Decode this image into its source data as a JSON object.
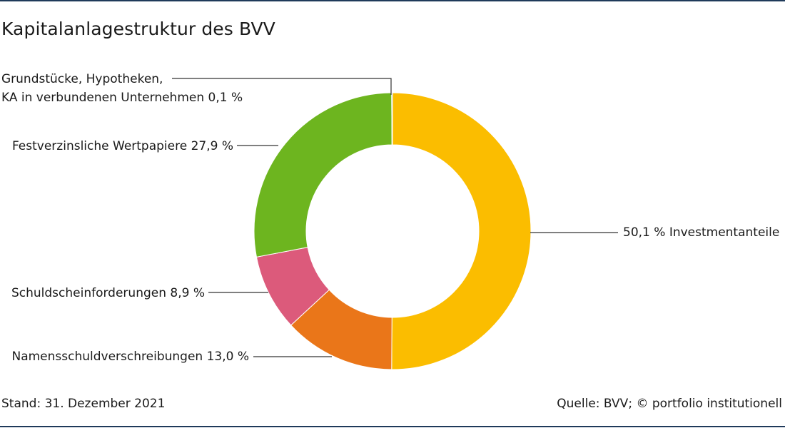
{
  "title": "Kapitalanlagestruktur des BVV",
  "footer": {
    "stand": "Stand: 31. Dezember 2021",
    "source": "Quelle: BVV; © portfolio institutionell"
  },
  "chart_data": {
    "type": "pie",
    "variant": "donut",
    "title": "Kapitalanlagestruktur des BVV",
    "unit": "%",
    "slices": [
      {
        "label": "Investmentanteile",
        "value": 50.1,
        "color": "#fbbd00",
        "text": "50,1 %  Investmentanteile"
      },
      {
        "label": "Namensschuldverschreibungen",
        "value": 13.0,
        "color": "#ea7619",
        "text": "Namensschuldverschreibungen  13,0 %"
      },
      {
        "label": "Schuldscheinforderungen",
        "value": 8.9,
        "color": "#dc5a7b",
        "text": "Schuldscheinforderungen  8,9 %"
      },
      {
        "label": "Festverzinsliche Wertpapiere",
        "value": 27.9,
        "color": "#6db51f",
        "text": "Festverzinsliche Wertpapiere  27,9 %"
      },
      {
        "label": "Grundstücke, Hypotheken, KA in verbundenen Unternehmen",
        "value": 0.1,
        "color": "#3a87c5",
        "text_lines": [
          "Grundstücke, Hypotheken,",
          "KA in verbundenen Unternehmen 0,1 %"
        ]
      }
    ]
  }
}
